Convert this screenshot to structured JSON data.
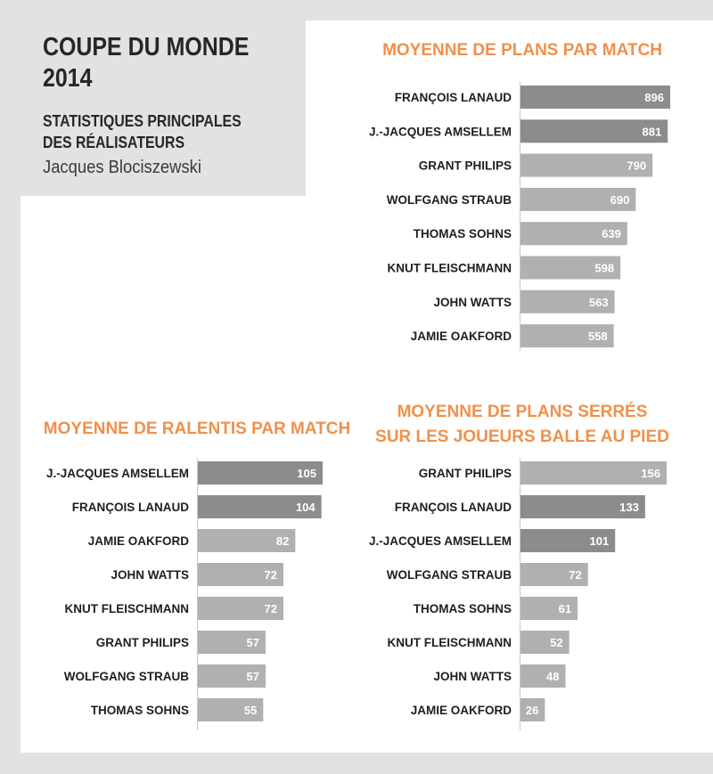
{
  "header": {
    "title_line1": "COUPE DU MONDE",
    "title_line2": "2014",
    "subtitle_line1": "STATISTIQUES PRINCIPALES",
    "subtitle_line2": "DES RÉALISATEURS",
    "author": "Jacques Blociszewski"
  },
  "colors": {
    "title_accent": "#f0904a",
    "bar_highlight": "#8c8c8c",
    "bar_default": "#b0b0b0",
    "background_panel": "#e2e2e2"
  },
  "chart_data": [
    {
      "type": "bar",
      "orientation": "horizontal",
      "title": "MOYENNE DE PLANS PAR MATCH",
      "categories": [
        "FRANÇOIS LANAUD",
        "J.-JACQUES AMSELLEM",
        "GRANT PHILIPS",
        "WOLFGANG STRAUB",
        "THOMAS SOHNS",
        "KNUT FLEISCHMANN",
        "JOHN WATTS",
        "JAMIE OAKFORD"
      ],
      "values": [
        896,
        881,
        790,
        690,
        639,
        598,
        563,
        558
      ],
      "highlighted": [
        "FRANÇOIS LANAUD",
        "J.-JACQUES AMSELLEM"
      ]
    },
    {
      "type": "bar",
      "orientation": "horizontal",
      "title": "MOYENNE DE RALENTIS PAR MATCH",
      "categories": [
        "J.-JACQUES AMSELLEM",
        "FRANÇOIS LANAUD",
        "JAMIE OAKFORD",
        "JOHN WATTS",
        "KNUT FLEISCHMANN",
        "GRANT PHILIPS",
        "WOLFGANG STRAUB",
        "THOMAS SOHNS"
      ],
      "values": [
        105,
        104,
        82,
        72,
        72,
        57,
        57,
        55
      ],
      "highlighted": [
        "J.-JACQUES AMSELLEM",
        "FRANÇOIS LANAUD"
      ]
    },
    {
      "type": "bar",
      "orientation": "horizontal",
      "title_lines": [
        "MOYENNE DE PLANS SERRÉS",
        "SUR LES JOUEURS BALLE AU PIED"
      ],
      "categories": [
        "GRANT PHILIPS",
        "FRANÇOIS LANAUD",
        "J.-JACQUES AMSELLEM",
        "WOLFGANG STRAUB",
        "THOMAS SOHNS",
        "KNUT FLEISCHMANN",
        "JOHN WATTS",
        "JAMIE OAKFORD"
      ],
      "values": [
        156,
        133,
        101,
        72,
        61,
        52,
        48,
        26
      ],
      "highlighted": [
        "FRANÇOIS LANAUD",
        "J.-JACQUES AMSELLEM"
      ]
    }
  ]
}
